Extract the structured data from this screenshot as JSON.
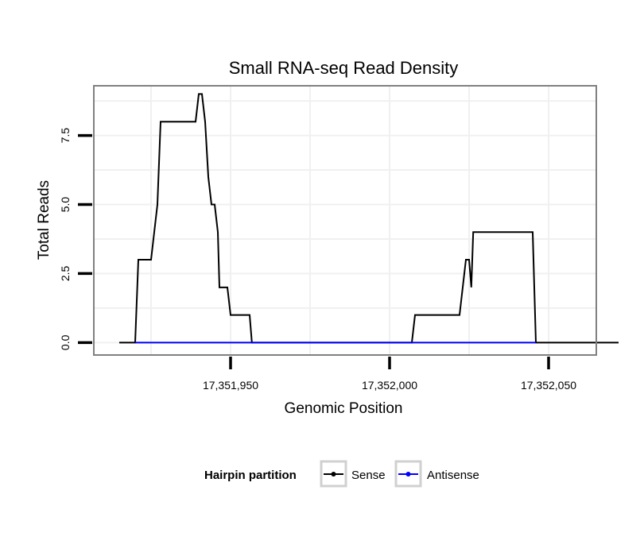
{
  "chart_data": {
    "type": "line",
    "title": "Small RNA-seq Read Density",
    "xlabel": "Genomic Position",
    "ylabel": "Total Reads",
    "xlim": [
      17351907,
      17352065
    ],
    "ylim": [
      -0.45,
      9.3
    ],
    "xticks": [
      17351950,
      17352000,
      17352050
    ],
    "xtick_labels": [
      "17,351,950",
      "17,352,000",
      "17,352,050"
    ],
    "yticks": [
      0,
      2.5,
      5,
      7.5
    ],
    "ytick_labels": [
      "0.0",
      "2.5",
      "5.0",
      "7.5"
    ],
    "grid": true,
    "legend": {
      "title": "Hairpin partition",
      "position": "bottom"
    },
    "series": [
      {
        "name": "Sense",
        "color": "#000000",
        "points": [
          [
            17351915,
            0
          ],
          [
            17351920,
            0
          ],
          [
            17351921,
            3
          ],
          [
            17351925,
            3
          ],
          [
            17351927,
            5
          ],
          [
            17351928,
            8
          ],
          [
            17351939,
            8
          ],
          [
            17351940,
            9
          ],
          [
            17351941,
            9
          ],
          [
            17351942,
            8
          ],
          [
            17351943,
            6
          ],
          [
            17351944,
            5
          ],
          [
            17351945,
            5
          ],
          [
            17351946,
            4
          ],
          [
            17351946.5,
            2
          ],
          [
            17351949,
            2
          ],
          [
            17351950,
            1
          ],
          [
            17351956,
            1
          ],
          [
            17351956.7,
            0
          ],
          [
            17352007,
            0
          ],
          [
            17352008,
            1
          ],
          [
            17352022,
            1
          ],
          [
            17352024,
            3
          ],
          [
            17352025,
            3
          ],
          [
            17352025.7,
            2
          ],
          [
            17352026.3,
            4
          ],
          [
            17352045,
            4
          ],
          [
            17352046,
            0
          ],
          [
            17352072,
            0
          ]
        ]
      },
      {
        "name": "Antisense",
        "color": "#0000ff",
        "points": [
          [
            17351920,
            0
          ],
          [
            17351957,
            0
          ],
          [
            17352008,
            0
          ],
          [
            17352046,
            0
          ]
        ]
      }
    ]
  }
}
